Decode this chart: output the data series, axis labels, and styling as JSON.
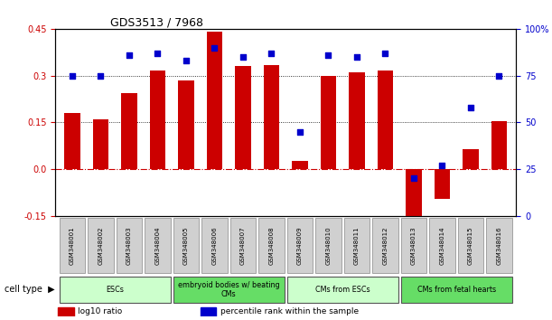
{
  "title": "GDS3513 / 7968",
  "samples": [
    "GSM348001",
    "GSM348002",
    "GSM348003",
    "GSM348004",
    "GSM348005",
    "GSM348006",
    "GSM348007",
    "GSM348008",
    "GSM348009",
    "GSM348010",
    "GSM348011",
    "GSM348012",
    "GSM348013",
    "GSM348014",
    "GSM348015",
    "GSM348016"
  ],
  "log10_ratio": [
    0.18,
    0.16,
    0.245,
    0.315,
    0.285,
    0.44,
    0.33,
    0.335,
    0.025,
    0.3,
    0.31,
    0.315,
    -0.195,
    -0.095,
    0.065,
    0.155
  ],
  "percentile_rank": [
    75,
    75,
    86,
    87,
    83,
    90,
    85,
    87,
    45,
    86,
    85,
    87,
    20,
    27,
    58,
    75
  ],
  "ylim_left": [
    -0.15,
    0.45
  ],
  "ylim_right": [
    0,
    100
  ],
  "yticks_left": [
    -0.15,
    0.0,
    0.15,
    0.3,
    0.45
  ],
  "yticks_right": [
    0,
    25,
    50,
    75,
    100
  ],
  "hlines": [
    0.15,
    0.3
  ],
  "bar_color": "#cc0000",
  "dot_color": "#0000cc",
  "zero_line_color": "#cc0000",
  "cell_type_groups": [
    {
      "label": "ESCs",
      "start": 0,
      "end": 3,
      "color": "#ccffcc"
    },
    {
      "label": "embryoid bodies w/ beating\nCMs",
      "start": 4,
      "end": 7,
      "color": "#66dd66"
    },
    {
      "label": "CMs from ESCs",
      "start": 8,
      "end": 11,
      "color": "#ccffcc"
    },
    {
      "label": "CMs from fetal hearts",
      "start": 12,
      "end": 15,
      "color": "#66dd66"
    }
  ],
  "cell_type_label": "cell type",
  "legend_bar_label": "log10 ratio",
  "legend_dot_label": "percentile rank within the sample",
  "tick_label_color_left": "#cc0000",
  "tick_label_color_right": "#0000cc",
  "background_color": "#ffffff",
  "plot_bg_color": "#ffffff",
  "sample_box_color": "#d0d0d0",
  "sample_box_edge": "#888888"
}
